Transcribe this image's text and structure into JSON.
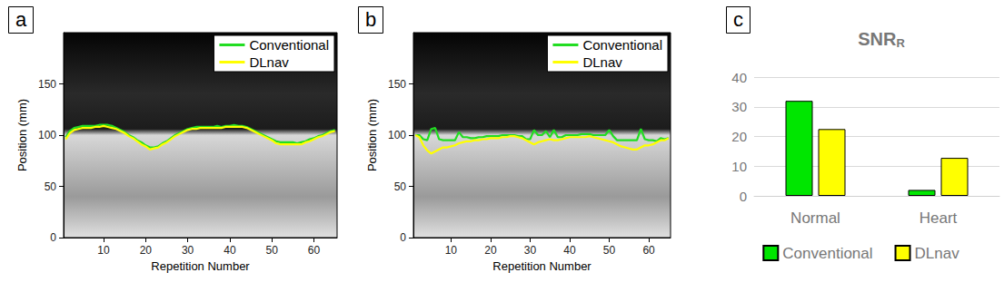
{
  "chart_data": [
    {
      "type": "line",
      "panel_label": "a",
      "x_label": "Repetition Number",
      "y_label": "Position (mm)",
      "xlim": [
        0.5,
        65.5
      ],
      "xticks": [
        10,
        20,
        30,
        40,
        50,
        60
      ],
      "ylim": [
        0,
        200
      ],
      "yticks": [
        0,
        50,
        100,
        150
      ],
      "grid": false,
      "legend": "upper right",
      "x": [
        1,
        2,
        3,
        4,
        5,
        6,
        7,
        8,
        9,
        10,
        11,
        12,
        13,
        14,
        15,
        16,
        17,
        18,
        19,
        20,
        21,
        22,
        23,
        24,
        25,
        26,
        27,
        28,
        29,
        30,
        31,
        32,
        33,
        34,
        35,
        36,
        37,
        38,
        39,
        40,
        41,
        42,
        43,
        44,
        45,
        46,
        47,
        48,
        49,
        50,
        51,
        52,
        53,
        54,
        55,
        56,
        57,
        58,
        59,
        60,
        61,
        62,
        63,
        64,
        65
      ],
      "series": [
        {
          "name": "Conventional",
          "color": "#22dd22",
          "values": [
            98,
            104,
            107,
            108,
            109,
            109,
            109,
            109,
            110,
            110,
            110,
            109,
            107,
            105,
            103,
            100,
            98,
            95,
            93,
            90,
            88,
            88,
            89,
            92,
            94,
            97,
            100,
            102,
            104,
            106,
            107,
            108,
            108,
            108,
            108,
            108,
            109,
            108,
            109,
            109,
            110,
            109,
            109,
            108,
            106,
            104,
            102,
            100,
            98,
            96,
            94,
            93,
            93,
            93,
            93,
            92,
            93,
            94,
            96,
            97,
            99,
            100,
            102,
            104,
            105
          ]
        },
        {
          "name": "DLnav",
          "color": "#ffff00",
          "values": [
            96,
            102,
            105,
            106,
            107,
            107,
            107,
            108,
            108,
            109,
            108,
            107,
            106,
            104,
            102,
            99,
            97,
            94,
            91,
            89,
            86,
            87,
            88,
            91,
            93,
            96,
            99,
            101,
            103,
            105,
            106,
            106,
            107,
            107,
            107,
            107,
            107,
            107,
            108,
            108,
            108,
            108,
            108,
            107,
            105,
            103,
            101,
            99,
            97,
            95,
            92,
            91,
            91,
            91,
            91,
            91,
            91,
            93,
            94,
            96,
            98,
            99,
            101,
            103,
            104
          ]
        }
      ]
    },
    {
      "type": "line",
      "panel_label": "b",
      "x_label": "Repetition Number",
      "y_label": "Position (mm)",
      "xlim": [
        0.5,
        65.5
      ],
      "xticks": [
        10,
        20,
        30,
        40,
        50,
        60
      ],
      "ylim": [
        0,
        200
      ],
      "yticks": [
        0,
        50,
        100,
        150
      ],
      "grid": false,
      "legend": "upper right",
      "x": [
        1,
        2,
        3,
        4,
        5,
        6,
        7,
        8,
        9,
        10,
        11,
        12,
        13,
        14,
        15,
        16,
        17,
        18,
        19,
        20,
        21,
        22,
        23,
        24,
        25,
        26,
        27,
        28,
        29,
        30,
        31,
        32,
        33,
        34,
        35,
        36,
        37,
        38,
        39,
        40,
        41,
        42,
        43,
        44,
        45,
        46,
        47,
        48,
        49,
        50,
        51,
        52,
        53,
        54,
        55,
        56,
        57,
        58,
        59,
        60,
        61,
        62,
        63,
        64,
        65
      ],
      "series": [
        {
          "name": "Conventional",
          "color": "#22dd22",
          "values": [
            100,
            100,
            96,
            95,
            106,
            107,
            96,
            95,
            95,
            95,
            95,
            103,
            98,
            98,
            97,
            97,
            98,
            98,
            99,
            99,
            99,
            99,
            100,
            100,
            100,
            100,
            99,
            99,
            96,
            96,
            105,
            100,
            100,
            104,
            98,
            105,
            98,
            98,
            100,
            100,
            100,
            100,
            101,
            101,
            101,
            100,
            100,
            100,
            100,
            105,
            99,
            95,
            95,
            95,
            95,
            95,
            95,
            106,
            96,
            95,
            95,
            94,
            97,
            96,
            97
          ]
        },
        {
          "name": "DLnav",
          "color": "#ffff00",
          "values": [
            100,
            98,
            90,
            85,
            82,
            84,
            86,
            88,
            88,
            89,
            90,
            92,
            93,
            94,
            94,
            95,
            95,
            96,
            96,
            97,
            97,
            97,
            98,
            98,
            99,
            99,
            98,
            97,
            95,
            93,
            91,
            93,
            94,
            95,
            96,
            95,
            95,
            96,
            97,
            98,
            98,
            98,
            98,
            98,
            99,
            98,
            97,
            96,
            95,
            94,
            93,
            91,
            89,
            88,
            87,
            86,
            86,
            88,
            90,
            90,
            91,
            93,
            95,
            95,
            97
          ]
        }
      ]
    },
    {
      "type": "bar",
      "panel_label": "c",
      "title": "SNR",
      "title_subscript": "R",
      "categories": [
        "Normal",
        "Heart"
      ],
      "ylim": [
        0,
        40
      ],
      "yticks": [
        0,
        10,
        20,
        30,
        40
      ],
      "grid": true,
      "legend": "bottom",
      "series": [
        {
          "name": "Conventional",
          "color": "#00e600",
          "values": [
            32,
            2
          ]
        },
        {
          "name": "DLnav",
          "color": "#ffff00",
          "values": [
            22.5,
            12.8
          ]
        }
      ]
    }
  ]
}
